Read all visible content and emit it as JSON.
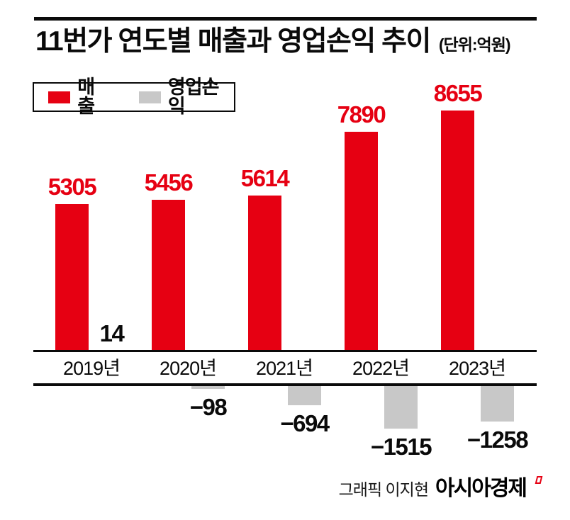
{
  "header": {
    "title": "11번가 연도별 매출과 영업손익 추이",
    "unit_note": "(단위:억원)"
  },
  "legend": {
    "items": [
      {
        "label": "매출",
        "color": "#e60012"
      },
      {
        "label": "영업손익",
        "color": "#c8c8c8"
      }
    ]
  },
  "chart_data": {
    "type": "bar",
    "title": "11번가 연도별 매출과 영업손익 추이",
    "unit": "억원",
    "categories": [
      "2019년",
      "2020년",
      "2021년",
      "2022년",
      "2023년"
    ],
    "series": [
      {
        "name": "매출",
        "color": "#e60012",
        "values": [
          5305,
          5456,
          5614,
          7890,
          8655
        ]
      },
      {
        "name": "영업손익",
        "color": "#c8c8c8",
        "values": [
          14,
          -98,
          -694,
          -1515,
          -1258
        ]
      }
    ],
    "revenue_labels": [
      "5305",
      "5456",
      "5614",
      "7890",
      "8655"
    ],
    "profit_labels": [
      "14",
      "−98",
      "−694",
      "−1515",
      "−1258"
    ],
    "layout": {
      "grid": false,
      "legend_position": "top-left",
      "positive_axis_y": 497,
      "negative_axis_y": 541
    }
  },
  "footer": {
    "credit": "그래픽 이지현",
    "brand": "아시아경제"
  },
  "colors": {
    "revenue": "#e60012",
    "loss": "#c8c8c8",
    "ink": "#0a0a0a",
    "background": "#ffffff"
  }
}
